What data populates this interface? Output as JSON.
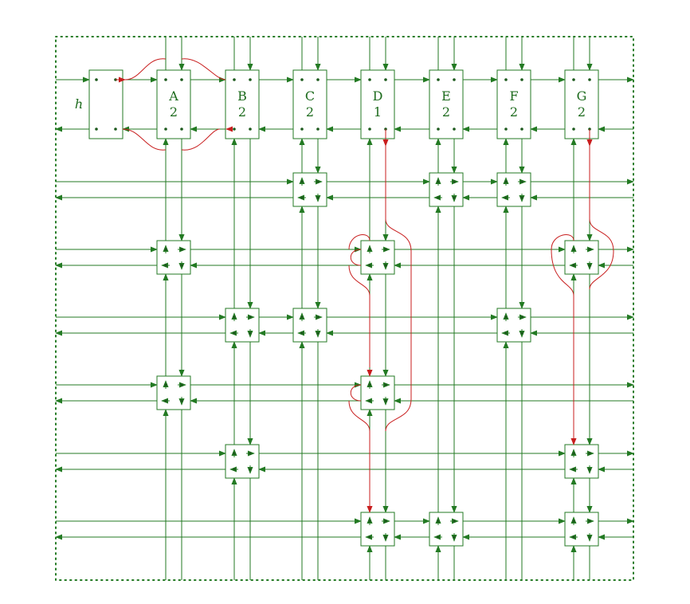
{
  "diagram": {
    "colors": {
      "line": "#237a23",
      "highlight": "#c81e1e",
      "background": "#ffffff"
    },
    "h_label": "h",
    "columns": [
      {
        "letter": "A",
        "number": "2"
      },
      {
        "letter": "B",
        "number": "2"
      },
      {
        "letter": "C",
        "number": "2"
      },
      {
        "letter": "D",
        "number": "1"
      },
      {
        "letter": "E",
        "number": "2"
      },
      {
        "letter": "F",
        "number": "2"
      },
      {
        "letter": "G",
        "number": "2"
      }
    ],
    "crossings": [
      {
        "row": 1,
        "col": 2
      },
      {
        "row": 1,
        "col": 4
      },
      {
        "row": 1,
        "col": 5
      },
      {
        "row": 2,
        "col": 0
      },
      {
        "row": 2,
        "col": 3
      },
      {
        "row": 2,
        "col": 6
      },
      {
        "row": 3,
        "col": 1
      },
      {
        "row": 3,
        "col": 2
      },
      {
        "row": 3,
        "col": 5
      },
      {
        "row": 4,
        "col": 0
      },
      {
        "row": 4,
        "col": 3
      },
      {
        "row": 5,
        "col": 1
      },
      {
        "row": 5,
        "col": 6
      },
      {
        "row": 6,
        "col": 3
      },
      {
        "row": 6,
        "col": 4
      },
      {
        "row": 6,
        "col": 6
      }
    ]
  }
}
